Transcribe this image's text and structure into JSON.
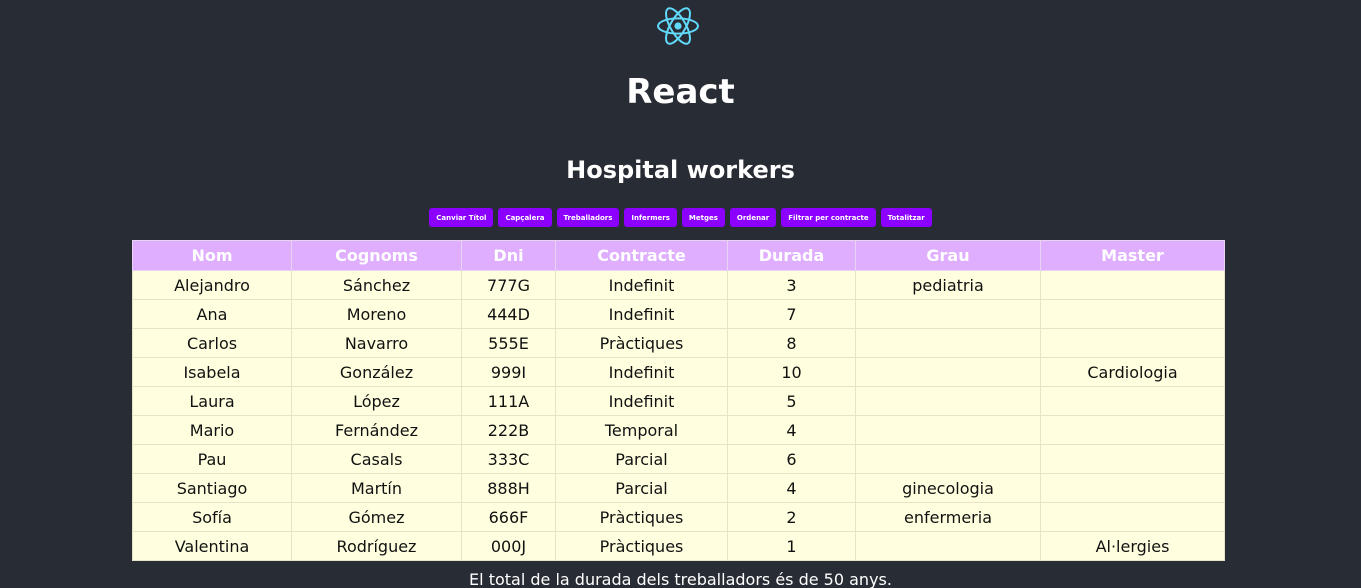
{
  "app": {
    "title": "React",
    "logo_icon": "react-atom-icon",
    "accent_color": "#61dafb"
  },
  "section_title": "Hospital workers",
  "toolbar": {
    "button_color": "#8b00ff",
    "buttons": [
      {
        "label": "Canviar Títol"
      },
      {
        "label": "Capçalera"
      },
      {
        "label": "Treballadors"
      },
      {
        "label": "Infermers"
      },
      {
        "label": "Metges"
      },
      {
        "label": "Ordenar"
      },
      {
        "label": "Filtrar per contracte"
      },
      {
        "label": "Totalitzar"
      }
    ]
  },
  "table": {
    "header_color": "#dfaeff",
    "row_color": "#ffffe0",
    "columns": [
      "Nom",
      "Cognoms",
      "Dni",
      "Contracte",
      "Durada",
      "Grau",
      "Master"
    ],
    "rows": [
      [
        "Alejandro",
        "Sánchez",
        "777G",
        "Indefinit",
        "3",
        "pediatria",
        ""
      ],
      [
        "Ana",
        "Moreno",
        "444D",
        "Indefinit",
        "7",
        "",
        ""
      ],
      [
        "Carlos",
        "Navarro",
        "555E",
        "Pràctiques",
        "8",
        "",
        ""
      ],
      [
        "Isabela",
        "González",
        "999I",
        "Indefinit",
        "10",
        "",
        "Cardiologia"
      ],
      [
        "Laura",
        "López",
        "111A",
        "Indefinit",
        "5",
        "",
        ""
      ],
      [
        "Mario",
        "Fernández",
        "222B",
        "Temporal",
        "4",
        "",
        ""
      ],
      [
        "Pau",
        "Casals",
        "333C",
        "Parcial",
        "6",
        "",
        ""
      ],
      [
        "Santiago",
        "Martín",
        "888H",
        "Parcial",
        "4",
        "ginecologia",
        ""
      ],
      [
        "Sofía",
        "Gómez",
        "666F",
        "Pràctiques",
        "2",
        "enfermeria",
        ""
      ],
      [
        "Valentina",
        "Rodríguez",
        "000J",
        "Pràctiques",
        "1",
        "",
        "Al·lergies"
      ]
    ]
  },
  "total_text": "El total de la durada dels treballadors és de 50 anys."
}
